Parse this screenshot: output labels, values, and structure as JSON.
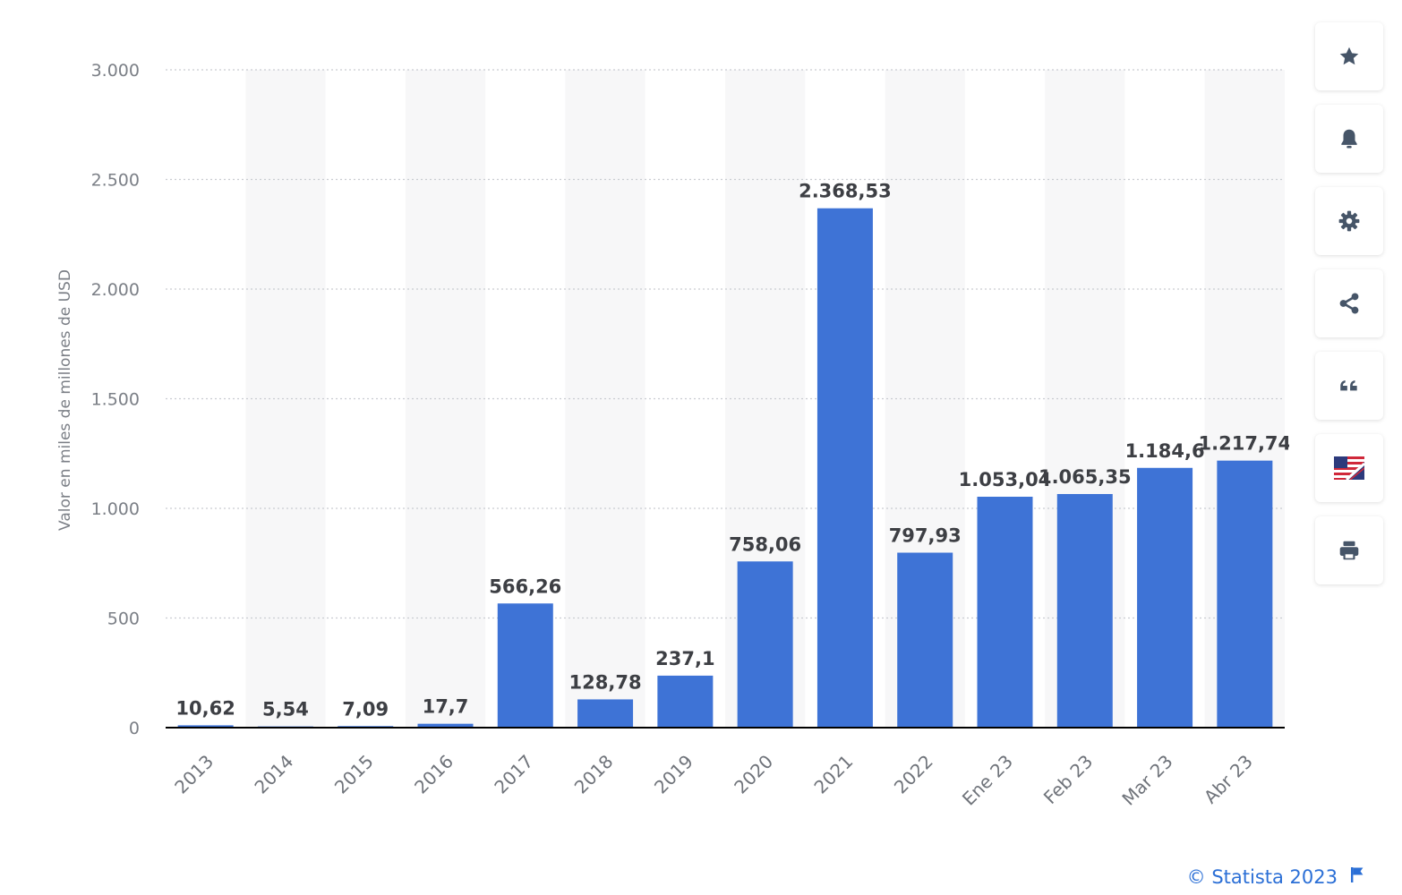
{
  "chart_data": {
    "type": "bar",
    "categories": [
      "2013",
      "2014",
      "2015",
      "2016",
      "2017",
      "2018",
      "2019",
      "2020",
      "2021",
      "2022",
      "Ene 23",
      "Feb 23",
      "Mar 23",
      "Abr 23"
    ],
    "values": [
      10.62,
      5.54,
      7.09,
      17.7,
      566.26,
      128.78,
      237.1,
      758.06,
      2368.53,
      797.93,
      1053.04,
      1065.35,
      1184.6,
      1217.74
    ],
    "value_labels": [
      "10,62",
      "5,54",
      "7,09",
      "17,7",
      "566,26",
      "128,78",
      "237,1",
      "758,06",
      "2.368,53",
      "797,93",
      "1.053,04",
      "1.065,35",
      "1.184,6",
      "1.217,74"
    ],
    "ylabel": "Valor en miles de millones de USD",
    "ylim": [
      0,
      3000
    ],
    "yticks": [
      0,
      500,
      1000,
      1500,
      2000,
      2500,
      3000
    ],
    "ytick_labels": [
      "0",
      "500",
      "1.000",
      "1.500",
      "2.000",
      "2.500",
      "3.000"
    ],
    "bar_color": "#3e73d6",
    "grid": true
  },
  "toolbar": [
    {
      "name": "favorite-button",
      "icon": "star-icon"
    },
    {
      "name": "notification-button",
      "icon": "bell-icon"
    },
    {
      "name": "settings-button",
      "icon": "gear-icon"
    },
    {
      "name": "share-button",
      "icon": "share-icon"
    },
    {
      "name": "cite-button",
      "icon": "quote-icon"
    },
    {
      "name": "language-button",
      "icon": "us-uk-flag-icon"
    },
    {
      "name": "print-button",
      "icon": "printer-icon"
    }
  ],
  "footer": {
    "copyright": "© Statista 2023",
    "link_color": "#2b6fd6"
  }
}
